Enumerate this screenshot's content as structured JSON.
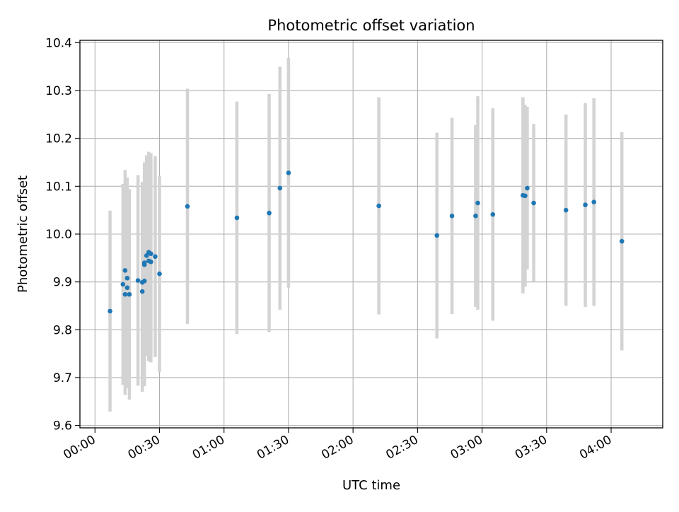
{
  "chart_data": {
    "type": "scatter",
    "title": "Photometric offset variation",
    "xlabel": "UTC time",
    "ylabel": "Photometric offset",
    "grid": true,
    "xlim": [
      "23:53",
      "04:24"
    ],
    "ylim": [
      9.595,
      10.405
    ],
    "x_ticks": [
      "00:00",
      "00:30",
      "01:00",
      "01:30",
      "02:00",
      "02:30",
      "03:00",
      "03:30",
      "04:00"
    ],
    "y_ticks": [
      "9.6",
      "9.7",
      "9.8",
      "9.9",
      "10.0",
      "10.1",
      "10.2",
      "10.3",
      "10.4"
    ],
    "colors": {
      "point": "#1f77b4",
      "errorbar": "#d3d3d3",
      "grid": "#b0b0b0"
    },
    "series": [
      {
        "points": [
          {
            "x": "00:07",
            "y": 9.839,
            "yerr": 0.21
          },
          {
            "x": "00:13",
            "y": 9.895,
            "yerr": 0.21
          },
          {
            "x": "00:14",
            "y": 9.874,
            "yerr": 0.21
          },
          {
            "x": "00:14",
            "y": 9.924,
            "yerr": 0.21
          },
          {
            "x": "00:15",
            "y": 9.908,
            "yerr": 0.21
          },
          {
            "x": "00:15",
            "y": 9.888,
            "yerr": 0.21
          },
          {
            "x": "00:16",
            "y": 9.874,
            "yerr": 0.22
          },
          {
            "x": "00:20",
            "y": 9.903,
            "yerr": 0.22
          },
          {
            "x": "00:22",
            "y": 9.88,
            "yerr": 0.21
          },
          {
            "x": "00:22",
            "y": 9.899,
            "yerr": 0.21
          },
          {
            "x": "00:23",
            "y": 9.902,
            "yerr": 0.22
          },
          {
            "x": "00:23",
            "y": 9.936,
            "yerr": 0.21
          },
          {
            "x": "00:23",
            "y": 9.94,
            "yerr": 0.21
          },
          {
            "x": "00:24",
            "y": 9.955,
            "yerr": 0.21
          },
          {
            "x": "00:25",
            "y": 9.962,
            "yerr": 0.21
          },
          {
            "x": "00:25",
            "y": 9.944,
            "yerr": 0.21
          },
          {
            "x": "00:26",
            "y": 9.942,
            "yerr": 0.21
          },
          {
            "x": "00:26",
            "y": 9.959,
            "yerr": 0.21
          },
          {
            "x": "00:28",
            "y": 9.953,
            "yerr": 0.21
          },
          {
            "x": "00:30",
            "y": 9.917,
            "yerr": 0.205
          },
          {
            "x": "00:43",
            "y": 10.058,
            "yerr": 0.246
          },
          {
            "x": "01:06",
            "y": 10.034,
            "yerr": 0.243
          },
          {
            "x": "01:21",
            "y": 10.044,
            "yerr": 0.249
          },
          {
            "x": "01:26",
            "y": 10.096,
            "yerr": 0.254
          },
          {
            "x": "01:30",
            "y": 10.128,
            "yerr": 0.24
          },
          {
            "x": "02:12",
            "y": 10.059,
            "yerr": 0.227
          },
          {
            "x": "02:39",
            "y": 9.997,
            "yerr": 0.215
          },
          {
            "x": "02:46",
            "y": 10.038,
            "yerr": 0.205
          },
          {
            "x": "02:57",
            "y": 10.038,
            "yerr": 0.19
          },
          {
            "x": "02:58",
            "y": 10.065,
            "yerr": 0.223
          },
          {
            "x": "03:05",
            "y": 10.041,
            "yerr": 0.222
          },
          {
            "x": "03:19",
            "y": 10.081,
            "yerr": 0.205
          },
          {
            "x": "03:20",
            "y": 10.08,
            "yerr": 0.19
          },
          {
            "x": "03:21",
            "y": 10.096,
            "yerr": 0.17
          },
          {
            "x": "03:24",
            "y": 10.065,
            "yerr": 0.165
          },
          {
            "x": "03:39",
            "y": 10.05,
            "yerr": 0.2
          },
          {
            "x": "03:48",
            "y": 10.061,
            "yerr": 0.213
          },
          {
            "x": "03:52",
            "y": 10.067,
            "yerr": 0.217
          },
          {
            "x": "04:05",
            "y": 9.985,
            "yerr": 0.228
          }
        ]
      }
    ]
  }
}
